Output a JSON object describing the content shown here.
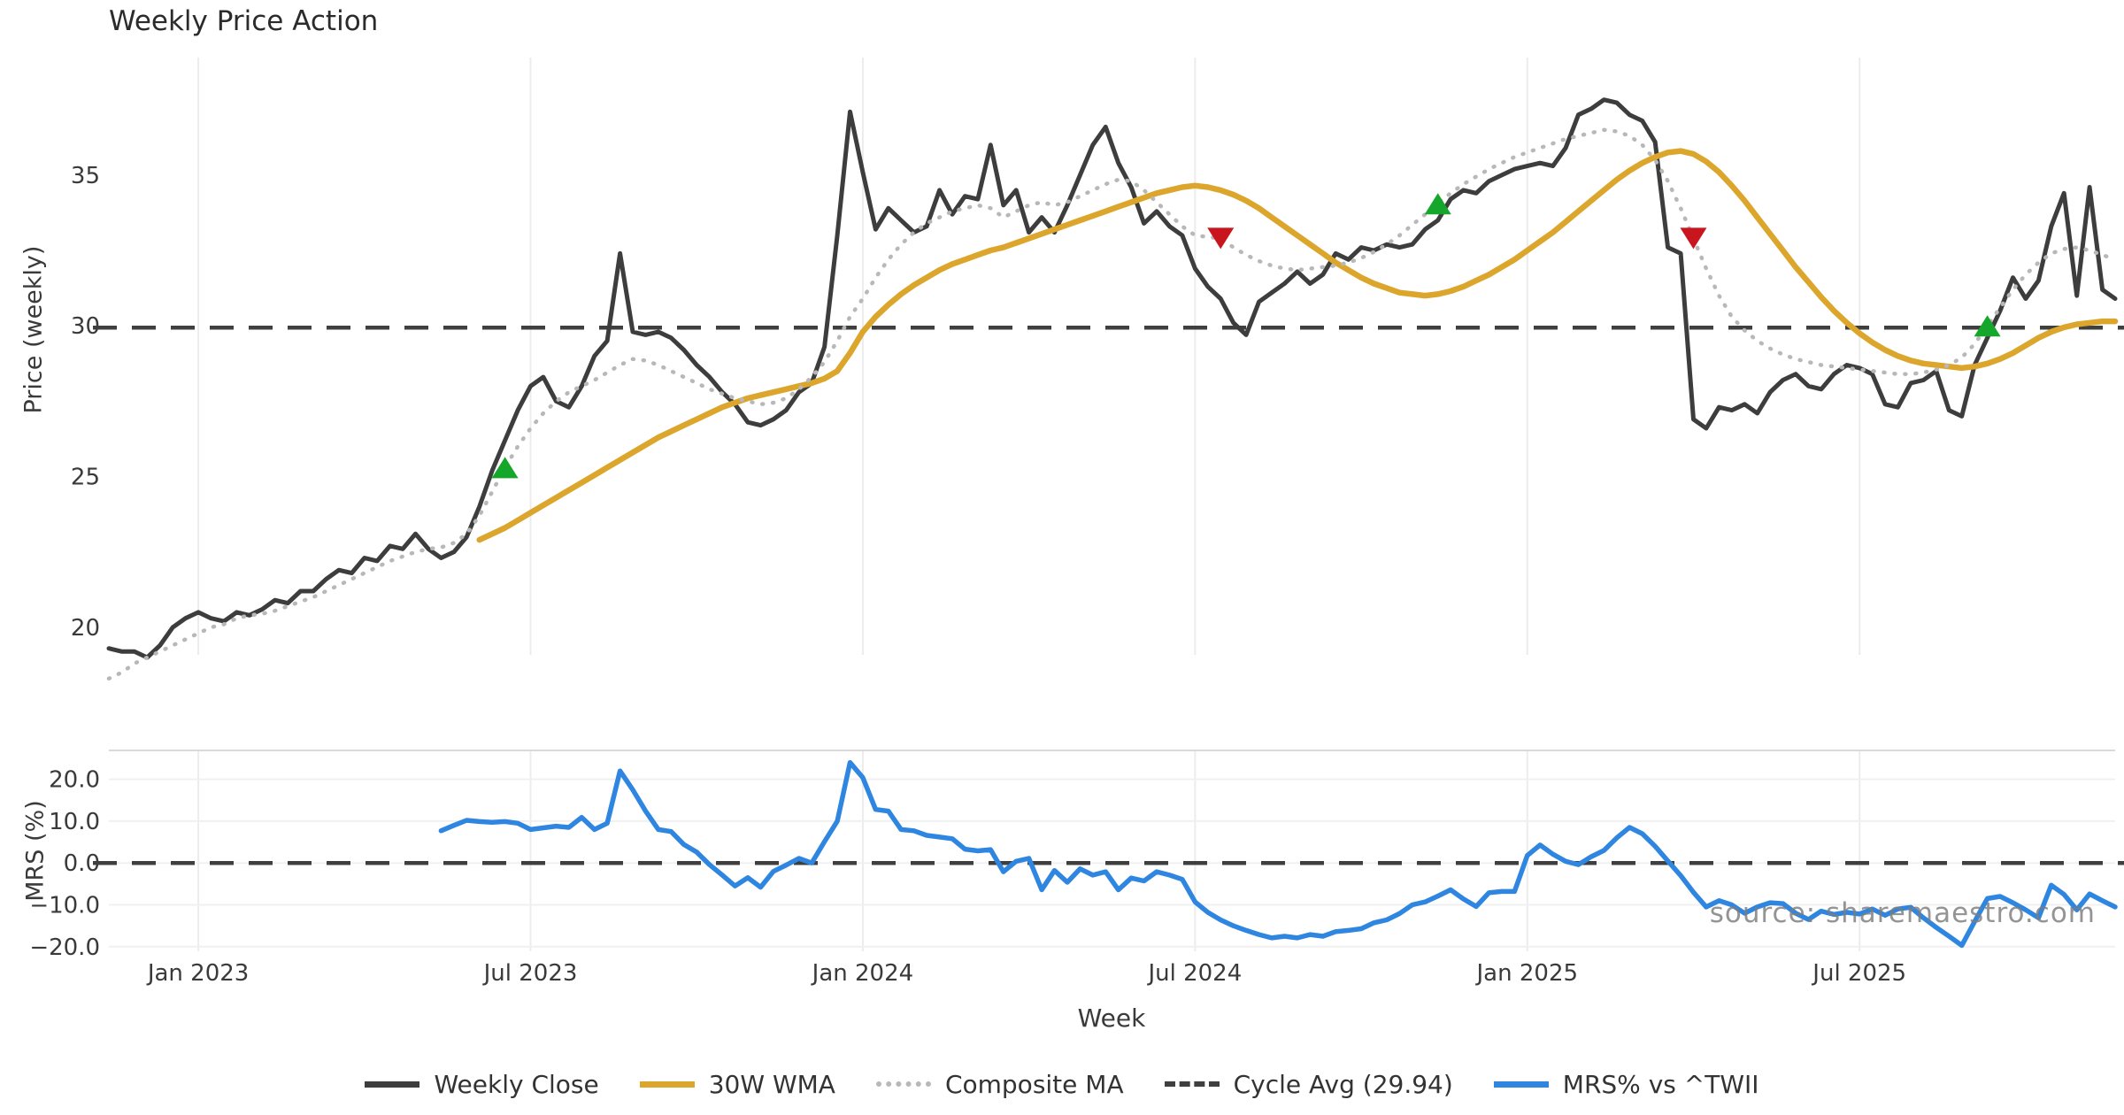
{
  "title": "Weekly Price Action",
  "watermark": "source: sharemaestro.com",
  "axis_labels": {
    "x": "Week",
    "y_price": "Price (weekly)",
    "y_mrs": "MRS (%)"
  },
  "legend": [
    {
      "label": "Weekly Close",
      "swatch": "close"
    },
    {
      "label": "30W WMA",
      "swatch": "wma"
    },
    {
      "label": "Composite MA",
      "swatch": "comp"
    },
    {
      "label": "Cycle Avg (29.94)",
      "swatch": "cyc"
    },
    {
      "label": "MRS% vs ^TWII",
      "swatch": "mrs"
    }
  ],
  "colors": {
    "close": "#3d3d3d",
    "wma": "#dca62c",
    "comp": "#b8b8b8",
    "cycle": "#3f3f3f",
    "mrs": "#2f86e0",
    "marker_up": "#15a62c",
    "marker_down": "#c9151e",
    "grid": "#ececec",
    "spine": "#d9d9d9",
    "tick_text": "#3a3a3a"
  },
  "chart_data": {
    "type": "line",
    "title": "Weekly Price Action",
    "xlabel": "Week",
    "x_unit": "week_index",
    "xlim": [
      0,
      157
    ],
    "x_ticks": [
      {
        "week": 7,
        "label": "Jan 2023"
      },
      {
        "week": 33,
        "label": "Jul 2023"
      },
      {
        "week": 59,
        "label": "Jan 2024"
      },
      {
        "week": 85,
        "label": "Jul 2024"
      },
      {
        "week": 111,
        "label": "Jan 2025"
      },
      {
        "week": 137,
        "label": "Jul 2025"
      }
    ],
    "panels": [
      {
        "name": "price",
        "ylabel": "Price (weekly)",
        "ylim": [
          18.5,
          38.9
        ],
        "y_ticks": [
          {
            "value": 20,
            "label": "20"
          },
          {
            "value": 25,
            "label": "25"
          },
          {
            "value": 30,
            "label": "30"
          },
          {
            "value": 35,
            "label": "35"
          }
        ],
        "cycle_avg": 29.94,
        "grid": "vertical-only"
      },
      {
        "name": "mrs",
        "ylabel": "MRS (%)",
        "ylim": [
          -21.1,
          26.9
        ],
        "y_ticks": [
          {
            "value": 20,
            "label": "20.0"
          },
          {
            "value": 10,
            "label": "10.0"
          },
          {
            "value": 0,
            "label": "0.0"
          },
          {
            "value": -10,
            "label": "−10.0"
          },
          {
            "value": -20,
            "label": "−20.0"
          }
        ],
        "zero_line": 0.0,
        "grid": "horizontal-and-vertical"
      }
    ],
    "series": [
      {
        "name": "Weekly Close",
        "panel": "price",
        "style": "solid",
        "color_key": "close",
        "values": [
          19.3,
          19.2,
          19.2,
          19.0,
          19.4,
          20.0,
          20.3,
          20.5,
          20.3,
          20.2,
          20.5,
          20.4,
          20.6,
          20.9,
          20.8,
          21.2,
          21.2,
          21.6,
          21.9,
          21.8,
          22.3,
          22.2,
          22.7,
          22.6,
          23.1,
          22.6,
          22.3,
          22.5,
          23.0,
          24.0,
          25.2,
          26.2,
          27.2,
          28.0,
          28.3,
          27.5,
          27.3,
          28.0,
          29.0,
          29.5,
          32.4,
          29.8,
          29.7,
          29.8,
          29.6,
          29.2,
          28.7,
          28.3,
          27.8,
          27.4,
          26.8,
          26.7,
          26.9,
          27.2,
          27.8,
          28.1,
          29.3,
          33.0,
          37.1,
          35.1,
          33.2,
          33.9,
          33.5,
          33.1,
          33.3,
          34.5,
          33.7,
          34.3,
          34.2,
          36.0,
          34.0,
          34.5,
          33.1,
          33.6,
          33.1,
          34.0,
          35.0,
          36.0,
          36.6,
          35.4,
          34.6,
          33.4,
          33.8,
          33.3,
          33.0,
          31.9,
          31.3,
          30.9,
          30.1,
          29.7,
          30.8,
          31.1,
          31.4,
          31.8,
          31.4,
          31.7,
          32.4,
          32.2,
          32.6,
          32.5,
          32.7,
          32.6,
          32.7,
          33.2,
          33.5,
          34.2,
          34.5,
          34.4,
          34.8,
          35.0,
          35.2,
          35.3,
          35.4,
          35.3,
          35.9,
          37.0,
          37.2,
          37.5,
          37.4,
          37.0,
          36.8,
          36.1,
          32.6,
          32.4,
          26.9,
          26.6,
          27.3,
          27.2,
          27.4,
          27.1,
          27.8,
          28.2,
          28.4,
          28.0,
          27.9,
          28.4,
          28.7,
          28.6,
          28.4,
          27.4,
          27.3,
          28.1,
          28.2,
          28.5,
          27.2,
          27.0,
          28.7,
          29.6,
          30.5,
          31.6,
          30.9,
          31.5,
          33.3,
          34.4,
          31.0,
          34.6,
          31.2,
          30.9
        ]
      },
      {
        "name": "30W WMA",
        "panel": "price",
        "style": "solid",
        "color_key": "wma",
        "values": [
          null,
          null,
          null,
          null,
          null,
          null,
          null,
          null,
          null,
          null,
          null,
          null,
          null,
          null,
          null,
          null,
          null,
          null,
          null,
          null,
          null,
          null,
          null,
          null,
          null,
          null,
          null,
          null,
          null,
          22.9,
          23.1,
          23.3,
          23.55,
          23.8,
          24.05,
          24.3,
          24.55,
          24.8,
          25.05,
          25.3,
          25.55,
          25.8,
          26.05,
          26.3,
          26.5,
          26.7,
          26.9,
          27.1,
          27.3,
          27.45,
          27.6,
          27.7,
          27.8,
          27.9,
          28.0,
          28.1,
          28.25,
          28.5,
          29.1,
          29.8,
          30.3,
          30.7,
          31.05,
          31.35,
          31.6,
          31.85,
          32.05,
          32.2,
          32.35,
          32.5,
          32.6,
          32.75,
          32.9,
          33.05,
          33.2,
          33.35,
          33.5,
          33.65,
          33.8,
          33.95,
          34.1,
          34.25,
          34.4,
          34.5,
          34.6,
          34.65,
          34.6,
          34.5,
          34.35,
          34.15,
          33.9,
          33.6,
          33.3,
          33.0,
          32.7,
          32.4,
          32.1,
          31.85,
          31.6,
          31.4,
          31.25,
          31.1,
          31.05,
          31.0,
          31.05,
          31.15,
          31.3,
          31.5,
          31.7,
          31.95,
          32.2,
          32.5,
          32.8,
          33.1,
          33.45,
          33.8,
          34.15,
          34.5,
          34.85,
          35.15,
          35.4,
          35.6,
          35.75,
          35.8,
          35.7,
          35.45,
          35.1,
          34.65,
          34.15,
          33.6,
          33.05,
          32.5,
          31.95,
          31.45,
          30.95,
          30.5,
          30.1,
          29.75,
          29.45,
          29.2,
          29.0,
          28.85,
          28.75,
          28.7,
          28.65,
          28.6,
          28.65,
          28.75,
          28.9,
          29.1,
          29.35,
          29.6,
          29.8,
          29.95,
          30.05,
          30.1,
          30.15,
          30.15
        ]
      },
      {
        "name": "Composite MA",
        "panel": "price",
        "style": "dotted",
        "color_key": "comp",
        "values": [
          18.3,
          18.5,
          18.8,
          19.0,
          19.2,
          19.4,
          19.6,
          19.8,
          20.0,
          20.1,
          20.3,
          20.4,
          20.45,
          20.55,
          20.7,
          20.85,
          21.0,
          21.2,
          21.4,
          21.6,
          21.8,
          22.0,
          22.2,
          22.35,
          22.5,
          22.6,
          22.65,
          22.8,
          23.1,
          23.7,
          24.5,
          25.3,
          26.0,
          26.6,
          27.1,
          27.5,
          27.8,
          28.0,
          28.2,
          28.45,
          28.7,
          28.9,
          28.85,
          28.7,
          28.5,
          28.3,
          28.1,
          27.9,
          27.75,
          27.6,
          27.5,
          27.4,
          27.45,
          27.6,
          27.9,
          28.3,
          28.8,
          29.5,
          30.3,
          30.9,
          31.6,
          32.2,
          32.7,
          33.1,
          33.4,
          33.6,
          33.8,
          33.9,
          34.0,
          33.9,
          33.6,
          33.8,
          34.0,
          34.1,
          34.0,
          34.1,
          34.3,
          34.5,
          34.7,
          34.85,
          34.8,
          34.5,
          34.1,
          33.7,
          33.3,
          33.0,
          32.95,
          32.9,
          32.6,
          32.35,
          32.15,
          32.0,
          31.9,
          31.85,
          31.9,
          31.95,
          32.0,
          32.1,
          32.25,
          32.45,
          32.7,
          33.0,
          33.35,
          33.7,
          34.05,
          34.4,
          34.7,
          34.95,
          35.2,
          35.4,
          35.6,
          35.75,
          35.9,
          36.05,
          36.2,
          36.3,
          36.4,
          36.5,
          36.45,
          36.3,
          36.0,
          35.5,
          34.8,
          33.9,
          32.9,
          31.9,
          31.0,
          30.3,
          29.85,
          29.5,
          29.25,
          29.05,
          28.9,
          28.8,
          28.7,
          28.65,
          28.6,
          28.55,
          28.5,
          28.45,
          28.4,
          28.4,
          28.45,
          28.55,
          28.7,
          28.95,
          29.4,
          30.0,
          30.6,
          31.2,
          31.7,
          32.1,
          32.4,
          32.55,
          32.6,
          32.5,
          32.35,
          32.2
        ]
      },
      {
        "name": "Cycle Avg (29.94)",
        "panel": "price",
        "style": "dashed-constant",
        "color_key": "cycle",
        "value": 29.94
      },
      {
        "name": "MRS% vs ^TWII",
        "panel": "mrs",
        "style": "solid",
        "color_key": "mrs",
        "values": [
          null,
          null,
          null,
          null,
          null,
          null,
          null,
          null,
          null,
          null,
          null,
          null,
          null,
          null,
          null,
          null,
          null,
          null,
          null,
          null,
          null,
          null,
          null,
          null,
          null,
          null,
          7.7,
          9.0,
          10.2,
          9.9,
          9.7,
          9.9,
          9.5,
          8.0,
          8.4,
          8.8,
          8.5,
          10.9,
          8.0,
          9.5,
          22.0,
          17.5,
          12.4,
          8.0,
          7.5,
          4.4,
          2.6,
          -0.4,
          -2.9,
          -5.5,
          -3.5,
          -5.8,
          -2.0,
          -0.5,
          1.1,
          0.0,
          5.1,
          10.0,
          24.0,
          20.4,
          12.8,
          12.4,
          8.0,
          7.7,
          6.6,
          6.2,
          5.8,
          3.3,
          2.9,
          3.2,
          -2.1,
          0.4,
          1.1,
          -6.4,
          -1.8,
          -4.6,
          -1.4,
          -2.9,
          -2.1,
          -6.4,
          -3.6,
          -4.3,
          -2.1,
          -2.9,
          -3.9,
          -9.3,
          -11.8,
          -13.6,
          -15.0,
          -16.1,
          -17.1,
          -17.9,
          -17.5,
          -17.9,
          -17.1,
          -17.5,
          -16.4,
          -16.1,
          -15.7,
          -14.3,
          -13.6,
          -12.1,
          -10.0,
          -9.3,
          -7.9,
          -6.4,
          -8.6,
          -10.4,
          -7.1,
          -6.8,
          -6.8,
          1.8,
          4.3,
          2.1,
          0.4,
          -0.4,
          1.5,
          3.0,
          6.0,
          8.5,
          7.0,
          4.0,
          0.5,
          -3.0,
          -7.0,
          -10.5,
          -9.0,
          -10.0,
          -12.0,
          -10.5,
          -9.5,
          -9.7,
          -12.0,
          -13.5,
          -11.5,
          -12.3,
          -11.8,
          -12.2,
          -11.0,
          -12.5,
          -11.0,
          -10.6,
          -13.1,
          -15.4,
          -17.5,
          -19.7,
          -14.0,
          -8.5,
          -8.0,
          -9.5,
          -11.2,
          -13.1,
          -5.3,
          -7.5,
          -11.2,
          -7.4,
          -9.0,
          -10.5
        ]
      }
    ],
    "markers": [
      {
        "week": 31,
        "value": 25.3,
        "dir": "up"
      },
      {
        "week": 87,
        "value": 32.9,
        "dir": "down"
      },
      {
        "week": 104,
        "value": 34.05,
        "dir": "up"
      },
      {
        "week": 124,
        "value": 32.9,
        "dir": "down"
      },
      {
        "week": 147,
        "value": 30.0,
        "dir": "up"
      }
    ],
    "annotations": {
      "watermark": "source: sharemaestro.com"
    },
    "legend_position": "bottom-center"
  }
}
